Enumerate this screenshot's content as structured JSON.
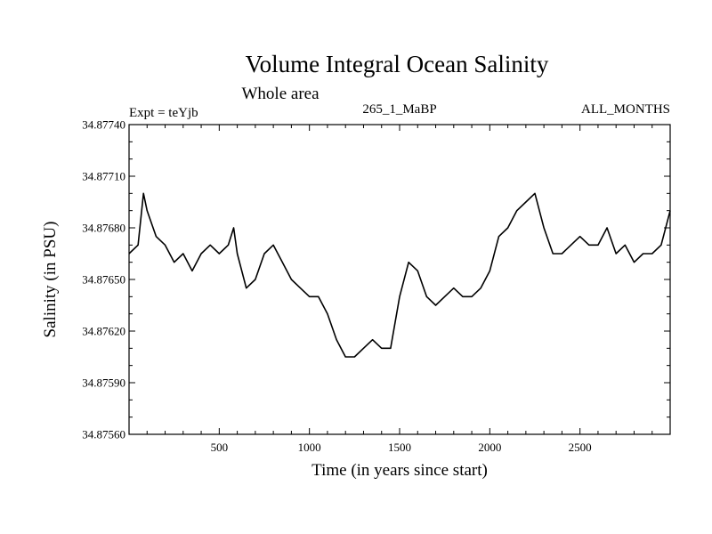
{
  "chart_data": {
    "type": "line",
    "title": "Volume Integral Ocean Salinity",
    "subtitle": "Whole area",
    "annotations": {
      "left": "Expt = teYjb",
      "center": "265_1_MaBP",
      "right": "ALL_MONTHS"
    },
    "xlabel": "Time (in years since start)",
    "ylabel": "Salinity (in PSU)",
    "xlim": [
      0,
      3000
    ],
    "ylim": [
      34.8756,
      34.8774
    ],
    "xticks": [
      500,
      1000,
      1500,
      2000,
      2500
    ],
    "xtick_labels": [
      "500",
      "1000",
      "1500",
      "2000",
      "2500"
    ],
    "yticks": [
      34.8756,
      34.8759,
      34.8762,
      34.8765,
      34.8768,
      34.8771,
      34.8774
    ],
    "ytick_labels": [
      "34.87560",
      "34.87590",
      "34.87620",
      "34.87650",
      "34.87680",
      "34.87710",
      "34.87740"
    ],
    "grid": false,
    "series": [
      {
        "name": "Salinity",
        "color": "#000000",
        "x": [
          0,
          50,
          80,
          100,
          150,
          200,
          250,
          300,
          350,
          400,
          450,
          500,
          550,
          580,
          600,
          650,
          700,
          750,
          800,
          850,
          900,
          950,
          1000,
          1050,
          1100,
          1150,
          1200,
          1250,
          1300,
          1350,
          1400,
          1450,
          1500,
          1550,
          1600,
          1650,
          1700,
          1750,
          1800,
          1850,
          1900,
          1950,
          2000,
          2050,
          2100,
          2150,
          2200,
          2250,
          2300,
          2350,
          2400,
          2450,
          2500,
          2550,
          2600,
          2650,
          2700,
          2750,
          2800,
          2850,
          2900,
          2950,
          3000
        ],
        "y": [
          34.87665,
          34.8767,
          34.877,
          34.8769,
          34.87675,
          34.8767,
          34.8766,
          34.87665,
          34.87655,
          34.87665,
          34.8767,
          34.87665,
          34.8767,
          34.8768,
          34.87665,
          34.87645,
          34.8765,
          34.87665,
          34.8767,
          34.8766,
          34.8765,
          34.87645,
          34.8764,
          34.8764,
          34.8763,
          34.87615,
          34.87605,
          34.87605,
          34.8761,
          34.87615,
          34.8761,
          34.8761,
          34.8764,
          34.8766,
          34.87655,
          34.8764,
          34.87635,
          34.8764,
          34.87645,
          34.8764,
          34.8764,
          34.87645,
          34.87655,
          34.87675,
          34.8768,
          34.8769,
          34.87695,
          34.877,
          34.8768,
          34.87665,
          34.87665,
          34.8767,
          34.87675,
          34.8767,
          34.8767,
          34.8768,
          34.87665,
          34.8767,
          34.8766,
          34.87665,
          34.87665,
          34.8767,
          34.8769
        ]
      }
    ]
  }
}
